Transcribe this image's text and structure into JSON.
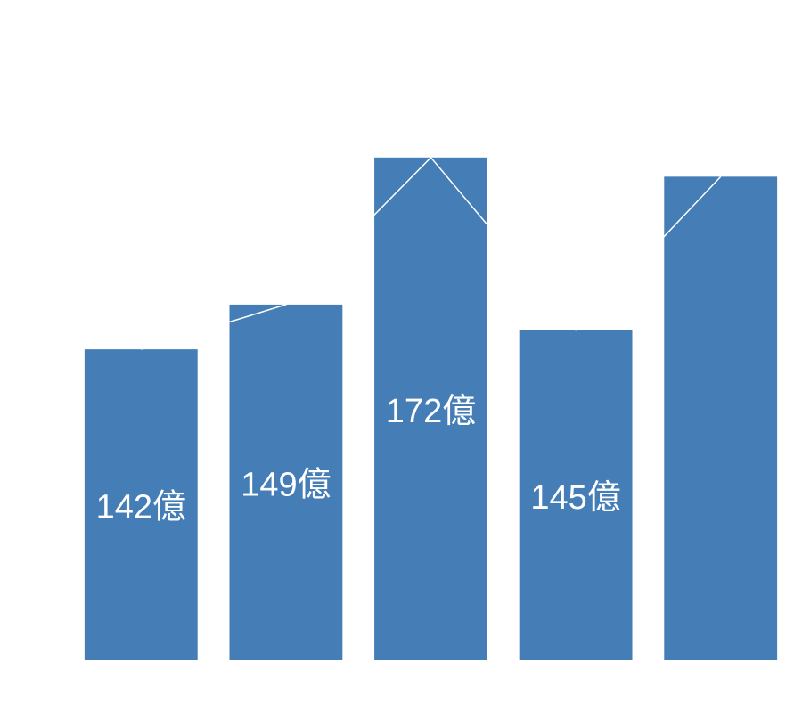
{
  "chart_data": {
    "type": "bar",
    "categories": [
      null,
      null,
      null,
      null,
      null
    ],
    "values": [
      142,
      149,
      172,
      145,
      169
    ],
    "value_labels": [
      "142億",
      "149億",
      "172億",
      "145億",
      null
    ],
    "color": "#457db6",
    "line_color": "#ffffff",
    "ylim": [
      93.4,
      182.7
    ]
  }
}
